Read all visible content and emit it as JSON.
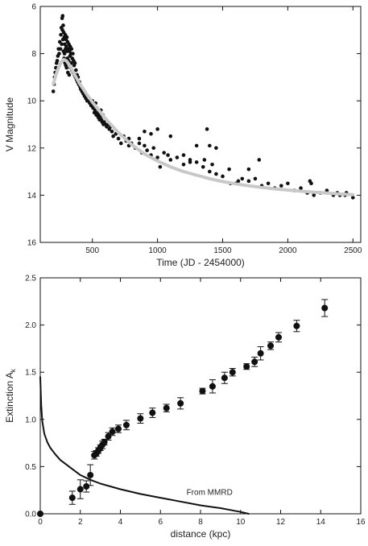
{
  "chart_data": [
    {
      "type": "scatter",
      "xlabel": "Time (JD - 2454000)",
      "ylabel": "V Magnitude",
      "xlim": [
        100,
        2560
      ],
      "ylim": [
        16,
        6
      ],
      "y_inverted": true,
      "x_ticks": [
        500,
        1000,
        1500,
        2000,
        2500
      ],
      "y_ticks": [
        6,
        8,
        10,
        12,
        14,
        16
      ],
      "grid": false,
      "series": [
        {
          "kind": "points",
          "color": "#111111",
          "x": [
            200,
            205,
            210,
            215,
            220,
            225,
            230,
            235,
            240,
            245,
            250,
            255,
            258,
            262,
            265,
            268,
            270,
            272,
            274,
            276,
            278,
            280,
            282,
            284,
            286,
            288,
            290,
            292,
            294,
            296,
            298,
            300,
            302,
            304,
            306,
            308,
            310,
            312,
            315,
            318,
            320,
            322,
            325,
            328,
            330,
            332,
            335,
            338,
            340,
            343,
            346,
            350,
            353,
            356,
            360,
            363,
            366,
            370,
            374,
            378,
            382,
            386,
            390,
            395,
            400,
            405,
            410,
            420,
            430,
            440,
            450,
            460,
            470,
            480,
            490,
            500,
            505,
            510,
            515,
            520,
            525,
            530,
            535,
            540,
            545,
            550,
            555,
            560,
            565,
            570,
            575,
            580,
            585,
            590,
            600,
            610,
            620,
            630,
            640,
            650,
            660,
            680,
            700,
            720,
            740,
            760,
            780,
            800,
            830,
            860,
            880,
            900,
            920,
            950,
            970,
            1000,
            1020,
            1050,
            1080,
            1100,
            1150,
            1200,
            1250,
            1300,
            1350,
            1400,
            1420,
            1450,
            1500,
            1550,
            1600,
            1650,
            1700,
            1750,
            1800,
            1850,
            1900,
            1950,
            2000,
            2050,
            2100,
            2150,
            2200,
            2250,
            2300,
            2350,
            2400,
            2450,
            2500,
            1780,
            1300,
            1700,
            1200,
            1000,
            900,
            1100,
            1400,
            1450,
            1360,
            1250,
            2170,
            2180,
            2380,
            2440,
            1620,
            1560,
            780,
            950,
            860,
            1380
          ],
          "y": [
            9.6,
            9.3,
            9.0,
            8.8,
            8.6,
            8.4,
            8.3,
            8.1,
            7.8,
            8.0,
            7.5,
            7.8,
            7.2,
            6.9,
            7.6,
            6.5,
            7.0,
            6.4,
            7.4,
            6.8,
            7.9,
            7.1,
            8.2,
            7.3,
            8.0,
            7.6,
            8.4,
            7.2,
            7.8,
            8.5,
            7.4,
            7.7,
            8.6,
            7.3,
            7.9,
            8.2,
            7.5,
            8.8,
            7.8,
            8.3,
            7.6,
            8.9,
            7.9,
            8.1,
            7.7,
            8.6,
            8.0,
            8.4,
            7.8,
            8.7,
            8.2,
            8.0,
            8.8,
            8.3,
            8.5,
            8.9,
            8.4,
            9.0,
            8.7,
            9.1,
            8.9,
            9.2,
            9.0,
            9.3,
            9.2,
            9.4,
            9.5,
            9.6,
            9.7,
            9.8,
            9.9,
            10.0,
            10.0,
            10.1,
            10.2,
            10.0,
            10.3,
            10.2,
            10.5,
            10.4,
            10.1,
            10.6,
            10.3,
            10.5,
            10.7,
            10.6,
            10.8,
            10.7,
            10.4,
            10.8,
            10.9,
            10.6,
            11.0,
            10.9,
            11.0,
            11.1,
            11.0,
            11.2,
            11.1,
            11.3,
            11.5,
            11.4,
            11.6,
            11.8,
            11.5,
            11.7,
            11.9,
            11.8,
            12.0,
            11.6,
            12.2,
            11.9,
            12.1,
            12.3,
            12.0,
            12.4,
            12.8,
            12.2,
            12.3,
            12.5,
            12.4,
            12.7,
            12.5,
            12.6,
            12.8,
            13.0,
            12.7,
            13.1,
            13.2,
            12.9,
            13.5,
            13.3,
            13.4,
            13.3,
            13.6,
            13.5,
            13.7,
            13.6,
            13.5,
            13.8,
            13.7,
            13.9,
            14.0,
            13.9,
            13.8,
            14.0,
            14.0,
            13.9,
            14.1,
            12.5,
            11.9,
            12.9,
            12.3,
            11.2,
            11.3,
            11.5,
            11.9,
            12.0,
            12.5,
            12.6,
            13.4,
            13.5,
            13.9,
            14.0,
            13.4,
            13.5,
            11.6,
            11.4,
            11.8,
            11.2
          ]
        },
        {
          "kind": "line",
          "color": "#c8c8c8",
          "x": [
            200,
            220,
            240,
            260,
            280,
            300,
            320,
            340,
            360,
            380,
            400,
            430,
            460,
            500,
            550,
            600,
            650,
            700,
            800,
            900,
            1000,
            1100,
            1200,
            1300,
            1400,
            1500,
            1600,
            1700,
            1800,
            1900,
            2000,
            2100,
            2200,
            2300,
            2400,
            2500
          ],
          "y": [
            9.3,
            8.9,
            8.6,
            8.35,
            8.25,
            8.3,
            8.45,
            8.65,
            8.85,
            9.05,
            9.25,
            9.5,
            9.75,
            10.05,
            10.4,
            10.75,
            11.05,
            11.35,
            11.85,
            12.25,
            12.55,
            12.8,
            13.0,
            13.15,
            13.3,
            13.42,
            13.52,
            13.6,
            13.67,
            13.73,
            13.78,
            13.83,
            13.87,
            13.91,
            13.95,
            13.98
          ]
        }
      ]
    },
    {
      "type": "scatter",
      "xlabel": "distance (kpc)",
      "ylabel": "Extinction A",
      "ylabel_subscript": "k",
      "xlim": [
        0,
        16
      ],
      "ylim": [
        0,
        2.5
      ],
      "x_ticks": [
        0,
        2,
        4,
        6,
        8,
        10,
        12,
        14,
        16
      ],
      "y_ticks": [
        0.0,
        0.5,
        1.0,
        1.5,
        2.0,
        2.5
      ],
      "grid": false,
      "annotations": [
        {
          "text": "From MMRD",
          "x": 7.3,
          "y": 0.2
        }
      ],
      "series": [
        {
          "kind": "points_with_errorbars",
          "color": "#111111",
          "x": [
            0.0,
            1.6,
            2.0,
            2.3,
            2.5,
            2.7,
            2.8,
            2.9,
            3.0,
            3.1,
            3.2,
            3.4,
            3.6,
            3.9,
            4.3,
            5.0,
            5.6,
            6.3,
            7.0,
            8.1,
            8.6,
            9.2,
            9.6,
            10.3,
            10.7,
            11.0,
            11.5,
            11.9,
            12.8,
            14.2
          ],
          "y": [
            0.0,
            0.17,
            0.26,
            0.29,
            0.41,
            0.62,
            0.64,
            0.67,
            0.7,
            0.73,
            0.76,
            0.82,
            0.87,
            0.9,
            0.94,
            1.01,
            1.07,
            1.12,
            1.17,
            1.3,
            1.35,
            1.44,
            1.5,
            1.56,
            1.61,
            1.7,
            1.78,
            1.87,
            1.99,
            2.18
          ],
          "yerr": [
            0.0,
            0.07,
            0.1,
            0.06,
            0.11,
            0.04,
            0.03,
            0.03,
            0.03,
            0.04,
            0.03,
            0.04,
            0.04,
            0.04,
            0.05,
            0.05,
            0.05,
            0.04,
            0.06,
            0.03,
            0.07,
            0.06,
            0.04,
            0.03,
            0.05,
            0.07,
            0.04,
            0.05,
            0.06,
            0.09
          ]
        },
        {
          "kind": "line",
          "name": "From MMRD",
          "color": "#111111",
          "x": [
            0.0,
            0.05,
            0.1,
            0.2,
            0.35,
            0.5,
            0.75,
            1.0,
            1.5,
            2.0,
            2.5,
            3.0,
            4.0,
            5.0,
            6.0,
            7.0,
            8.0,
            9.0,
            9.5,
            10.0,
            10.4
          ],
          "y": [
            1.45,
            1.15,
            0.98,
            0.85,
            0.76,
            0.7,
            0.63,
            0.57,
            0.49,
            0.41,
            0.36,
            0.32,
            0.26,
            0.21,
            0.17,
            0.13,
            0.09,
            0.06,
            0.04,
            0.02,
            0.0
          ]
        }
      ]
    }
  ]
}
